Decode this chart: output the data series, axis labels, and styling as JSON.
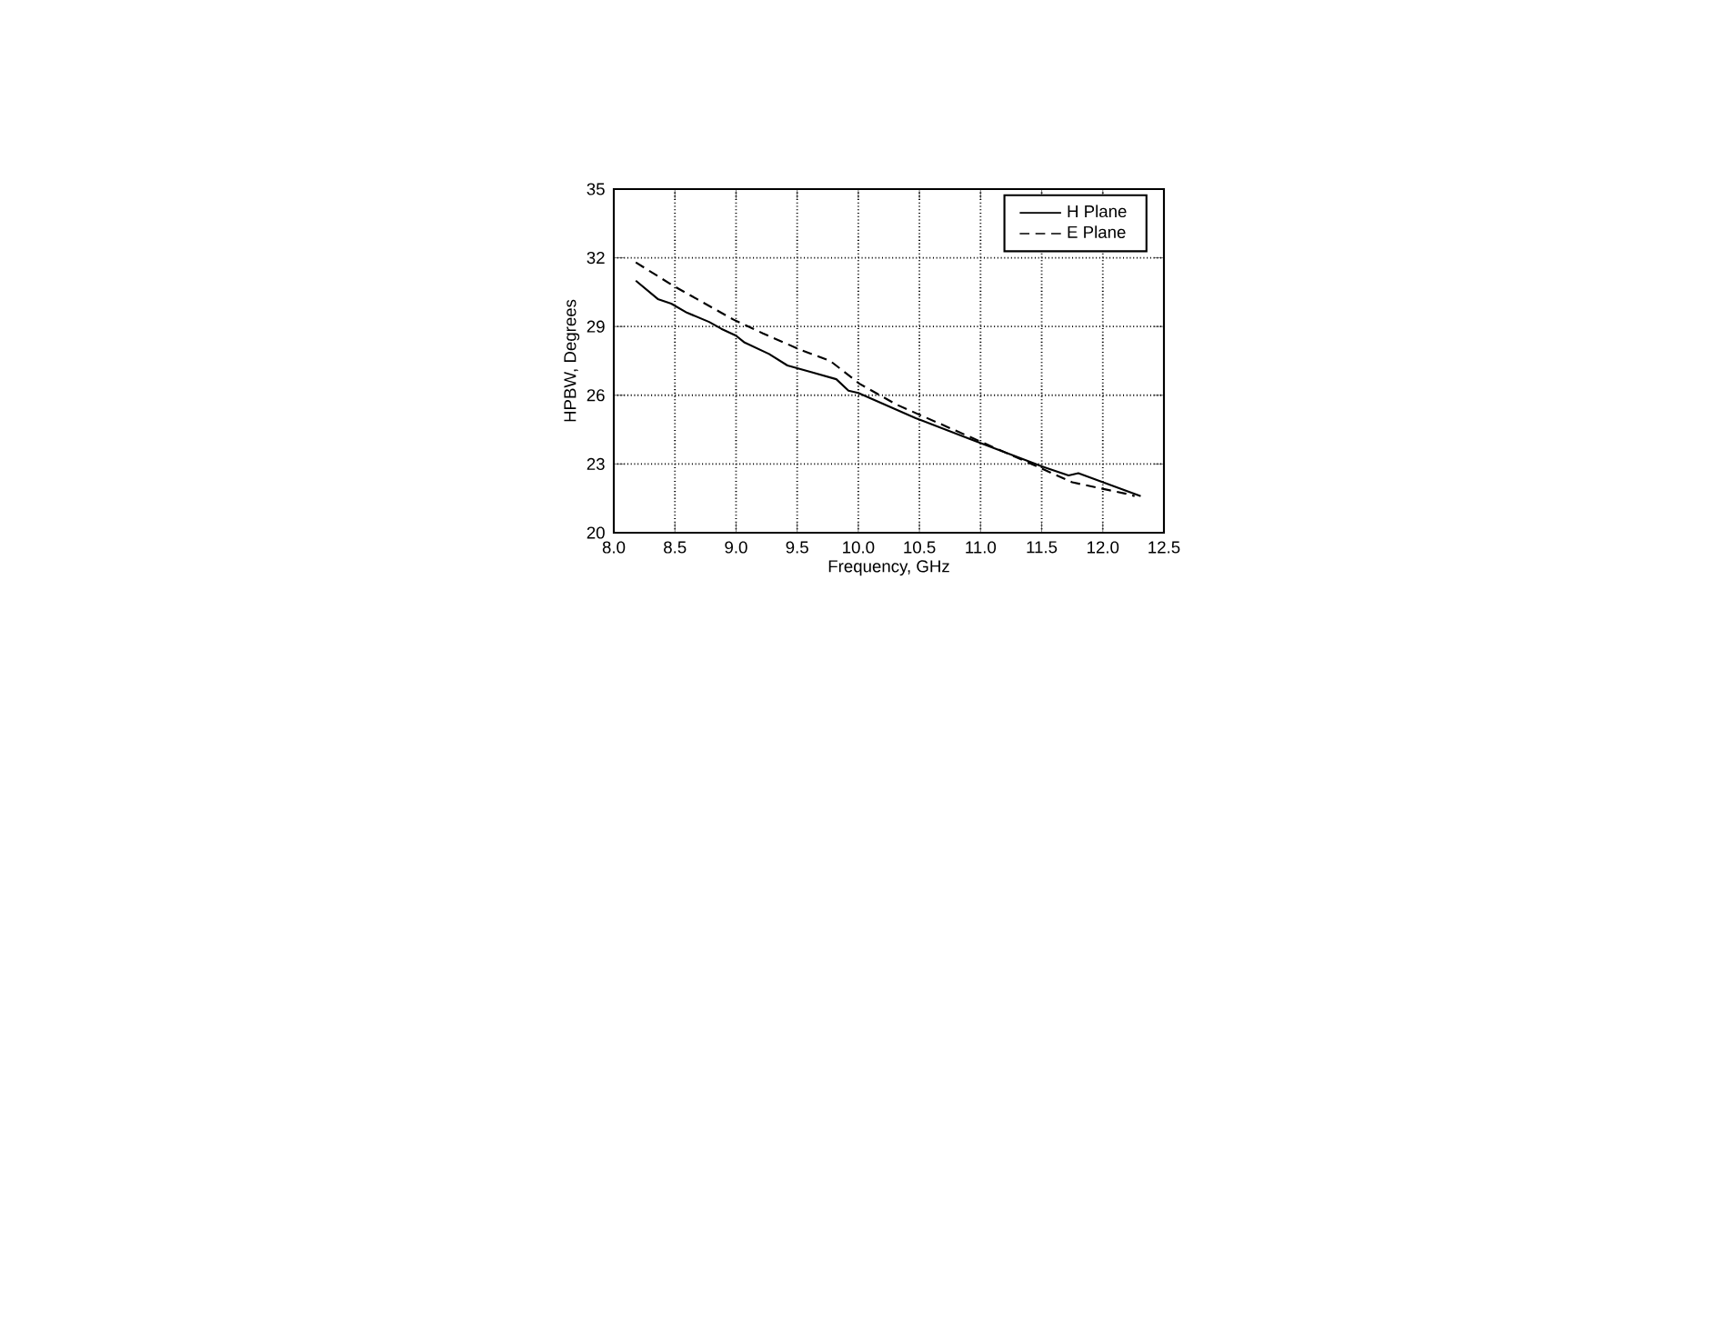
{
  "chart_data": {
    "type": "line",
    "xlabel": "Frequency, GHz",
    "ylabel": "HPBW, Degrees",
    "xlim": [
      8.0,
      12.5
    ],
    "ylim": [
      20,
      35
    ],
    "xticks": [
      {
        "value": 8.0,
        "label": "8.0"
      },
      {
        "value": 8.5,
        "label": "8.5"
      },
      {
        "value": 9.0,
        "label": "9.0"
      },
      {
        "value": 9.5,
        "label": "9.5"
      },
      {
        "value": 10.0,
        "label": "10.0"
      },
      {
        "value": 10.5,
        "label": "10.5"
      },
      {
        "value": 11.0,
        "label": "11.0"
      },
      {
        "value": 11.5,
        "label": "11.5"
      },
      {
        "value": 12.0,
        "label": "12.0"
      },
      {
        "value": 12.5,
        "label": "12.5"
      }
    ],
    "yticks": [
      20,
      23,
      26,
      29,
      32,
      35
    ],
    "grid": true,
    "legend": "top right",
    "series": [
      {
        "name": "H Plane",
        "color": "#000000",
        "line_style": "solid",
        "x": [
          8.18,
          8.36,
          8.47,
          8.6,
          8.78,
          8.88,
          9.0,
          9.07,
          9.27,
          9.42,
          9.62,
          9.82,
          9.92,
          10.0,
          10.47,
          10.91,
          11.5,
          11.72,
          11.8,
          12.31
        ],
        "values": [
          31.0,
          30.2,
          30.0,
          29.6,
          29.2,
          28.9,
          28.6,
          28.3,
          27.8,
          27.3,
          27.0,
          26.7,
          26.2,
          26.1,
          25.0,
          24.1,
          22.9,
          22.5,
          22.6,
          21.6
        ]
      },
      {
        "name": "E Plane",
        "color": "#000000",
        "line_style": "dashed",
        "x": [
          8.18,
          8.48,
          8.68,
          8.98,
          9.22,
          9.52,
          9.77,
          10.01,
          10.31,
          11.5,
          11.75,
          12.19,
          12.26
        ],
        "values": [
          31.8,
          30.8,
          30.2,
          29.3,
          28.7,
          28.0,
          27.5,
          26.5,
          25.6,
          22.8,
          22.2,
          21.7,
          21.6
        ]
      }
    ]
  }
}
